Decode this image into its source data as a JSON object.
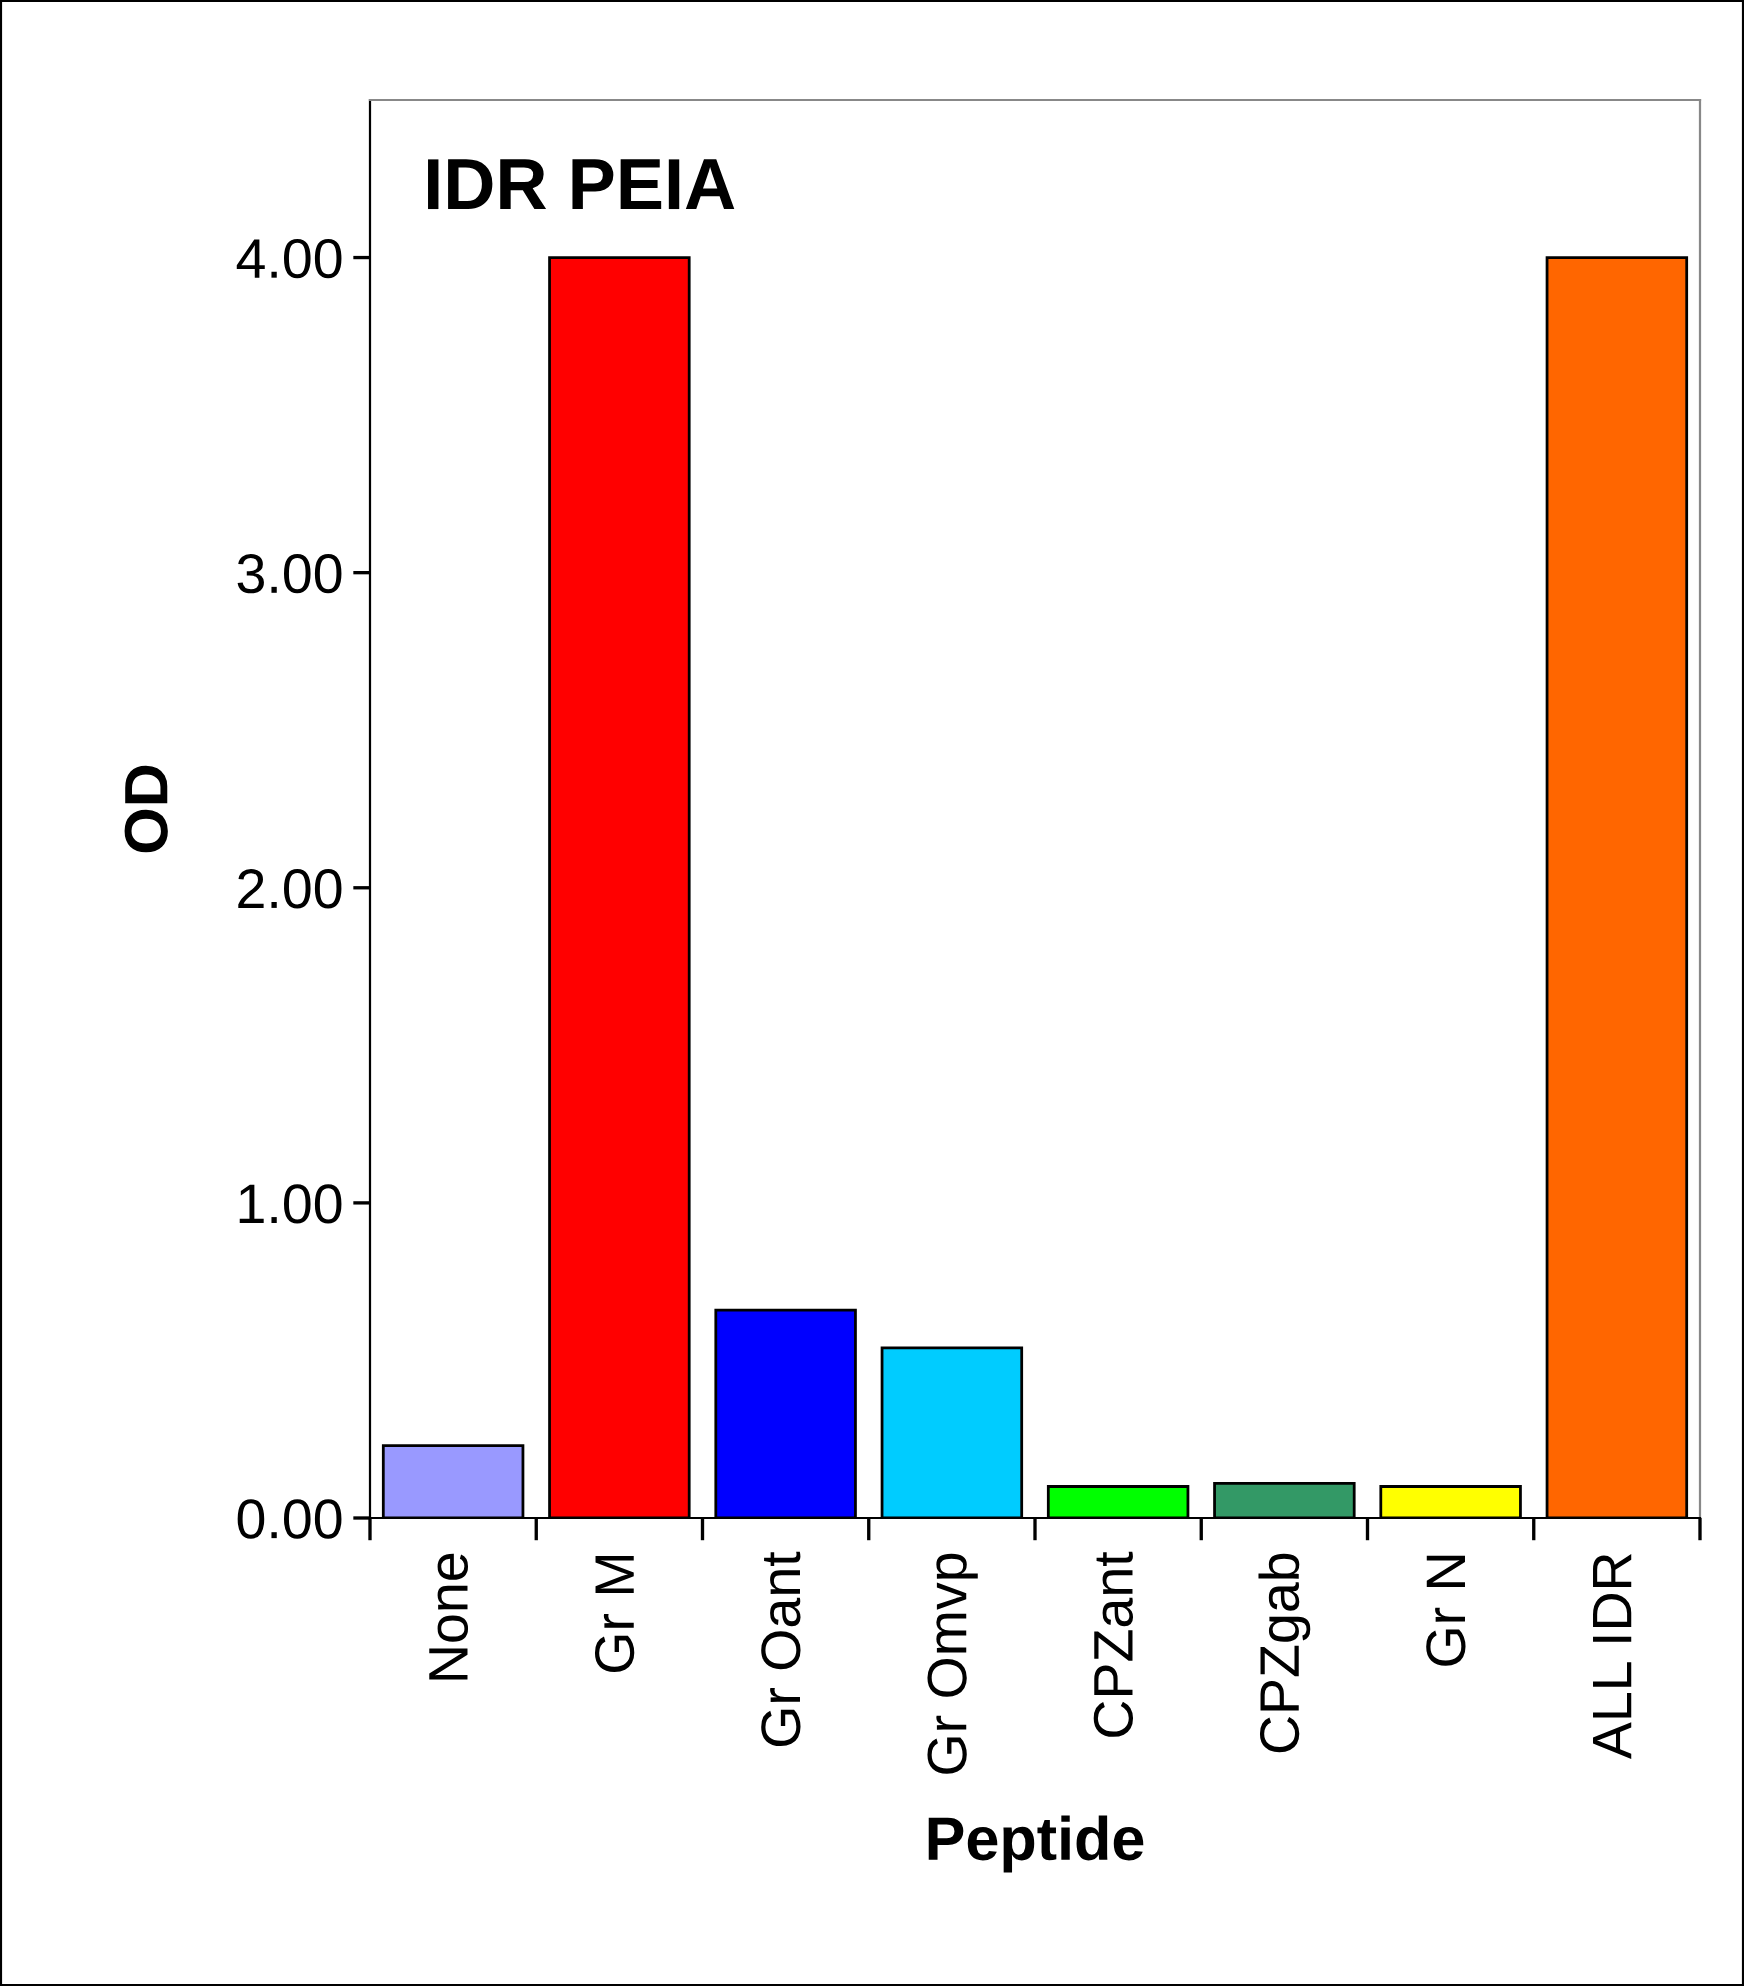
{
  "chart_data": {
    "type": "bar",
    "title": "IDR PEIA",
    "xlabel": "Peptide",
    "ylabel": "OD",
    "categories": [
      "None",
      "Gr M",
      "Gr Oant",
      "Gr Omvp",
      "CPZant",
      "CPZgab",
      "Gr N",
      "ALL IDR"
    ],
    "values": [
      0.23,
      4.0,
      0.66,
      0.54,
      0.1,
      0.11,
      0.1,
      4.0
    ],
    "colors": [
      "#9999ff",
      "#ff0000",
      "#0000ff",
      "#00ccff",
      "#00ff00",
      "#339966",
      "#ffff00",
      "#ff6600"
    ],
    "ylim": [
      0,
      4.5
    ],
    "yticks": [
      {
        "value": 0,
        "label": "0.00"
      },
      {
        "value": 1,
        "label": "1.00"
      },
      {
        "value": 2,
        "label": "2.00"
      },
      {
        "value": 3,
        "label": "3.00"
      },
      {
        "value": 4,
        "label": "4.00"
      }
    ],
    "grid": false,
    "legend": false
  }
}
